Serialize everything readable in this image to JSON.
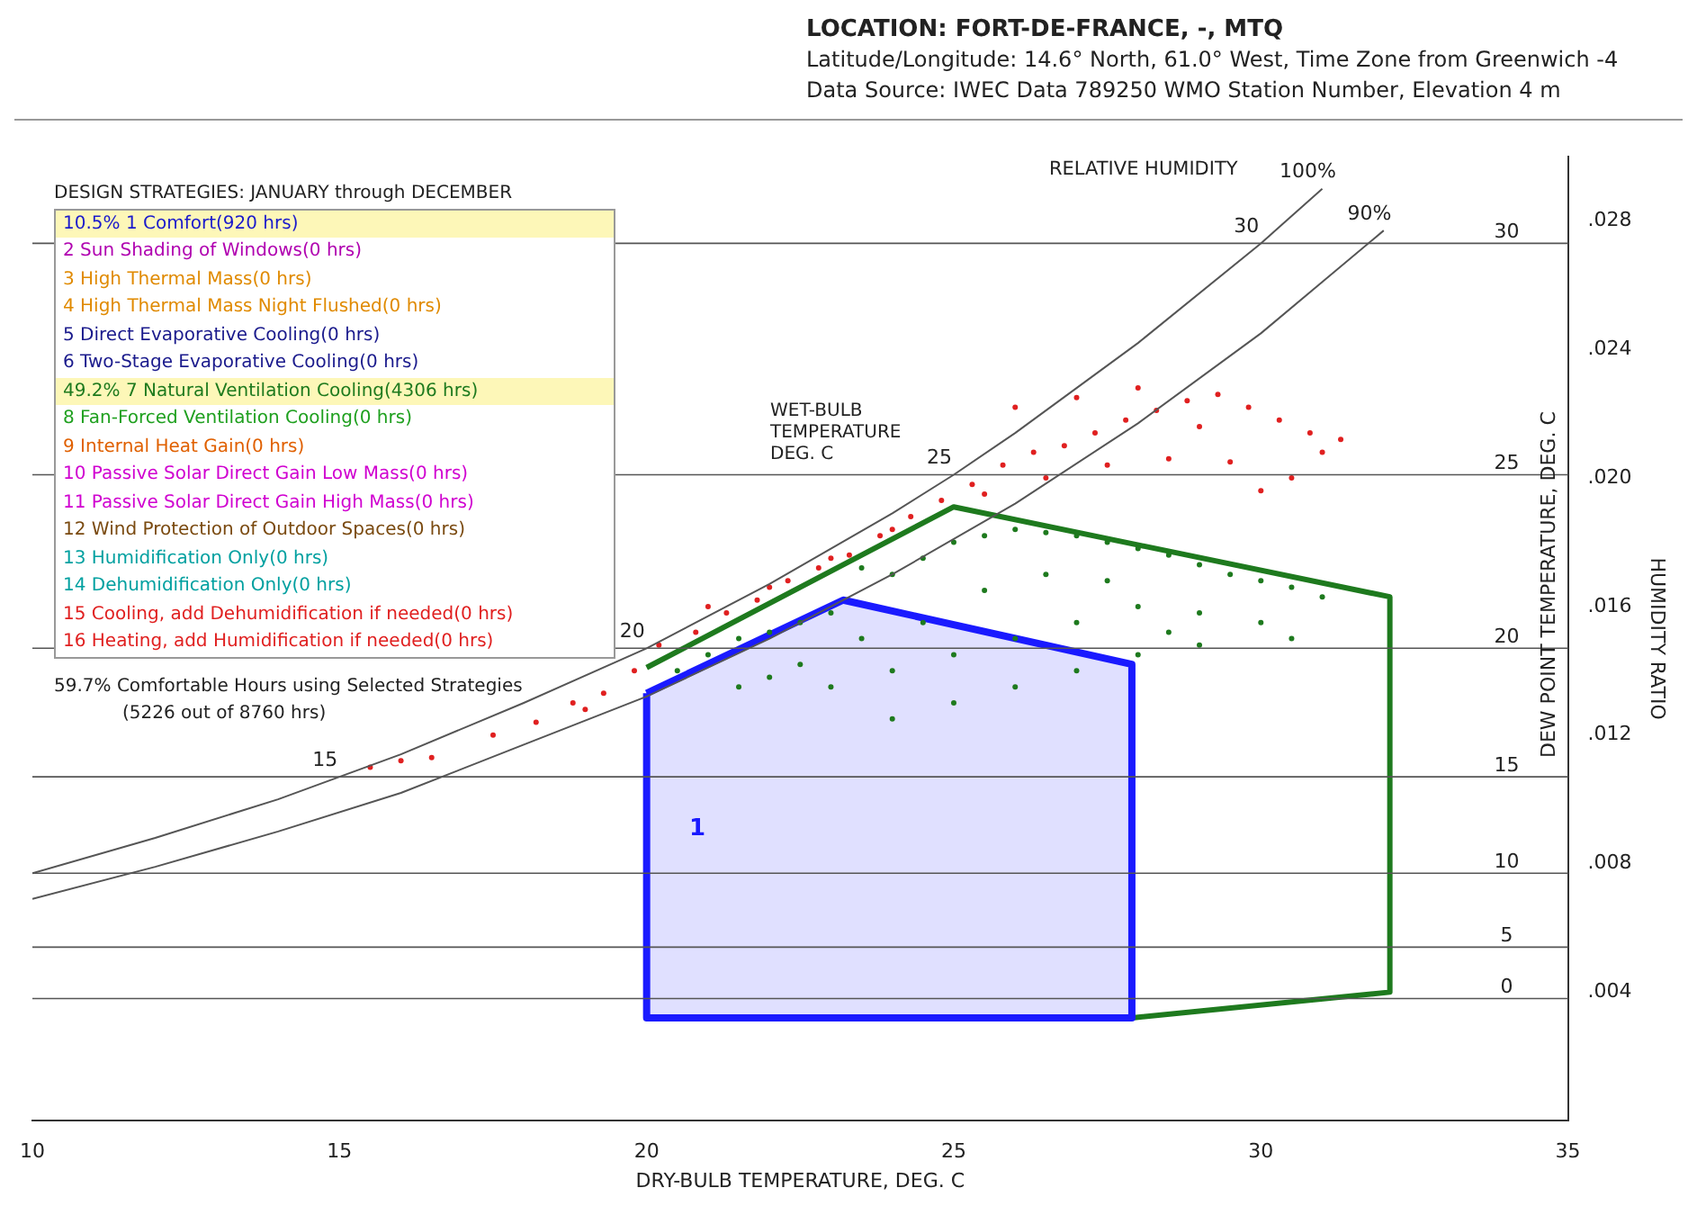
{
  "chart_data": {
    "type": "scatter",
    "title": "LOCATION:   FORT-DE-FRANCE, -, MTQ",
    "subtitle": "Latitude/Longitude:  14.6° North, 61.0° West, Time Zone from Greenwich -4",
    "xlabel": "DRY-BULB TEMPERATURE, DEG. C",
    "ylabel": "HUMIDITY RATIO",
    "y2label": "DEW POINT TEMPERATURE, DEG. C",
    "xlim": [
      10,
      35
    ],
    "xticks": [
      10,
      15,
      20,
      25,
      30,
      35
    ],
    "ylim": [
      0,
      0.03
    ],
    "yticks": [
      {
        "value": 0.004,
        "label": ".004"
      },
      {
        "value": 0.008,
        "label": ".008"
      },
      {
        "value": 0.012,
        "label": ".012"
      },
      {
        "value": 0.016,
        "label": ".016"
      },
      {
        "value": 0.02,
        "label": ".020"
      },
      {
        "value": 0.024,
        "label": ".024"
      },
      {
        "value": 0.028,
        "label": ".028"
      }
    ],
    "legend": false,
    "grid": false,
    "series": [
      {
        "type": "line",
        "color": "#555555",
        "x": [
          10,
          12,
          14,
          15,
          16,
          18,
          20,
          22,
          24,
          25,
          26,
          28,
          30,
          31
        ],
        "values": [
          0.0077,
          0.0088,
          0.01,
          0.0107,
          0.0114,
          0.013,
          0.0147,
          0.0167,
          0.0189,
          0.0201,
          0.0214,
          0.0242,
          0.0273,
          0.029
        ]
      },
      {
        "type": "line",
        "color": "#555555",
        "x": [
          10,
          12,
          14,
          16,
          18,
          20,
          22,
          24,
          26,
          28,
          30,
          31,
          32
        ],
        "values": [
          0.0069,
          0.0079,
          0.009,
          0.0102,
          0.0117,
          0.0132,
          0.015,
          0.017,
          0.0192,
          0.0217,
          0.0245,
          0.0261,
          0.0277
        ]
      },
      {
        "type": "scatter",
        "color": "#e02020",
        "x": [
          15.5,
          16.5,
          17.5,
          18.2,
          18.8,
          19.3,
          19.8,
          20.2,
          20.8,
          21.3,
          21.8,
          22.3,
          22.8,
          23.3,
          23.8,
          24.3,
          24.8,
          25.3,
          25.8,
          26.3,
          26.8,
          27.3,
          27.8,
          28.3,
          28.8,
          29.3,
          29.8,
          30.3,
          30.8,
          31.3,
          26,
          27,
          28,
          29,
          25.5,
          26.5,
          27.5,
          28.5,
          29.5,
          30.5,
          24,
          23,
          22,
          21,
          31,
          30,
          16,
          19
        ],
        "values": [
          0.011,
          0.0113,
          0.012,
          0.0124,
          0.013,
          0.0133,
          0.014,
          0.0148,
          0.0152,
          0.0158,
          0.0162,
          0.0168,
          0.0172,
          0.0176,
          0.0182,
          0.0188,
          0.0193,
          0.0198,
          0.0204,
          0.0208,
          0.021,
          0.0214,
          0.0218,
          0.0221,
          0.0224,
          0.0226,
          0.0222,
          0.0218,
          0.0214,
          0.0212,
          0.0222,
          0.0225,
          0.0228,
          0.0216,
          0.0195,
          0.02,
          0.0204,
          0.0206,
          0.0205,
          0.02,
          0.0184,
          0.0175,
          0.0166,
          0.016,
          0.0208,
          0.0196,
          0.0112,
          0.0128
        ]
      },
      {
        "type": "scatter",
        "color": "#1e7a1e",
        "x": [
          20.5,
          21,
          21.5,
          22,
          22.5,
          23,
          23.5,
          24,
          24.5,
          25,
          25.5,
          26,
          26.5,
          27,
          27.5,
          28,
          28.5,
          29,
          29.5,
          30,
          30.5,
          31,
          22,
          23,
          24,
          25,
          26,
          27,
          28,
          29,
          30,
          24,
          25,
          26,
          27,
          28,
          29,
          25.5,
          26.5,
          27.5,
          23.5,
          22.5,
          21.5,
          24.5,
          28.5,
          30.5
        ],
        "values": [
          0.014,
          0.0145,
          0.015,
          0.0152,
          0.0155,
          0.0158,
          0.0172,
          0.017,
          0.0175,
          0.018,
          0.0182,
          0.0184,
          0.0183,
          0.0182,
          0.018,
          0.0178,
          0.0176,
          0.0173,
          0.017,
          0.0168,
          0.0166,
          0.0163,
          0.0138,
          0.0135,
          0.014,
          0.0145,
          0.015,
          0.0155,
          0.016,
          0.0158,
          0.0155,
          0.0125,
          0.013,
          0.0135,
          0.014,
          0.0145,
          0.0148,
          0.0165,
          0.017,
          0.0168,
          0.015,
          0.0142,
          0.0135,
          0.0155,
          0.0152,
          0.015
        ]
      },
      {
        "type": "area",
        "color": "#1a1aff",
        "x": [
          20,
          23.2,
          27.9,
          27.9,
          20,
          20
        ],
        "values": [
          0.0133,
          0.0162,
          0.0142,
          0.0032,
          0.0032,
          0.0133
        ]
      },
      {
        "type": "line",
        "color": "#1e7a1e",
        "x": [
          27.9,
          32.1,
          32.1,
          25,
          20
        ],
        "values": [
          0.0032,
          0.004,
          0.0163,
          0.0191,
          0.0141
        ]
      }
    ],
    "annotations": [
      "Data Source:   IWEC Data    789250 WMO Station Number, Elevation 4 m",
      "DESIGN STRATEGIES:  JANUARY through DECEMBER",
      "10.5%  1 Comfort(920 hrs)",
      "2 Sun Shading of Windows(0 hrs)",
      "3 High Thermal Mass(0 hrs)",
      "4 High Thermal Mass Night Flushed(0 hrs)",
      "5 Direct Evaporative Cooling(0 hrs)",
      "6 Two-Stage Evaporative Cooling(0 hrs)",
      "49.2%  7 Natural Ventilation Cooling(4306 hrs)",
      "8 Fan-Forced Ventilation Cooling(0 hrs)",
      "9 Internal Heat Gain(0 hrs)",
      "10 Passive Solar Direct Gain Low Mass(0 hrs)",
      "11 Passive Solar Direct Gain High Mass(0 hrs)",
      "12 Wind Protection of Outdoor Spaces(0 hrs)",
      "13 Humidification Only(0 hrs)",
      "14 Dehumidification Only(0 hrs)",
      "15 Cooling, add Dehumidification if needed(0 hrs)",
      "16 Heating, add Humidification if needed(0 hrs)",
      "59.7%  Comfortable Hours using Selected Strategies",
      "(5226 out of 8760 hrs)",
      "1",
      "WET-BULB TEMPERATURE DEG. C",
      "RELATIVE HUMIDITY",
      {
        "text": "15",
        "x": 15,
        "y": 0.0107
      },
      {
        "text": "20",
        "x": 20,
        "y": 0.0147
      },
      {
        "text": "25",
        "x": 25,
        "y": 0.0201
      },
      {
        "text": "30",
        "x": 30,
        "y": 0.0273
      },
      {
        "text": "100%",
        "x": 31,
        "y": 0.029
      },
      {
        "text": "90%",
        "x": 32,
        "y": 0.0277
      },
      {
        "text": "0",
        "x": 35,
        "y": 0.0038
      },
      {
        "text": "5",
        "x": 35,
        "y": 0.0054
      },
      {
        "text": "10",
        "x": 35,
        "y": 0.0077
      },
      {
        "text": "15",
        "x": 35,
        "y": 0.0107
      },
      {
        "text": "20",
        "x": 35,
        "y": 0.0147
      },
      {
        "text": "25",
        "x": 35,
        "y": 0.0201
      },
      {
        "text": "30",
        "x": 35,
        "y": 0.0273
      }
    ],
    "ref_lines": [
      {
        "axis": "y",
        "value": 0.0038,
        "color": "#555555"
      },
      {
        "axis": "y",
        "value": 0.0054,
        "color": "#555555"
      },
      {
        "axis": "y",
        "value": 0.0077,
        "color": "#555555"
      },
      {
        "axis": "y",
        "value": 0.0107,
        "color": "#555555"
      },
      {
        "axis": "y",
        "value": 0.0147,
        "color": "#555555"
      },
      {
        "axis": "y",
        "value": 0.0201,
        "color": "#555555"
      },
      {
        "axis": "y",
        "value": 0.0273,
        "color": "#555555"
      }
    ]
  }
}
